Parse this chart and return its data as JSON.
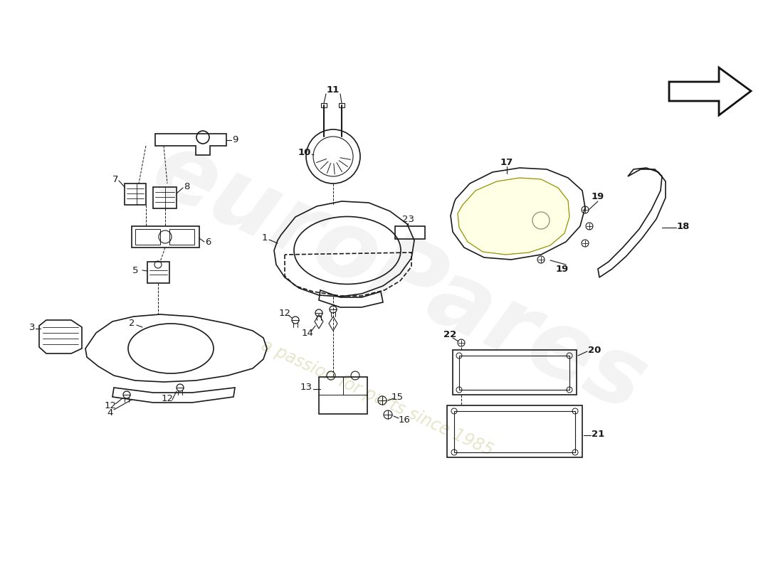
{
  "background_color": "#ffffff",
  "line_color": "#1a1a1a",
  "label_color": "#1a1a1a",
  "watermark1_color": "#d8d8d8",
  "watermark2_color": "#c8c8a0",
  "arrow_fill": "#ffffff",
  "arrow_edge": "#111111",
  "lw_main": 1.2,
  "lw_thin": 0.8,
  "label_fs": 9.5,
  "label_fs_bold": 10,
  "fig_w": 11.0,
  "fig_h": 8.0,
  "dpi": 100
}
